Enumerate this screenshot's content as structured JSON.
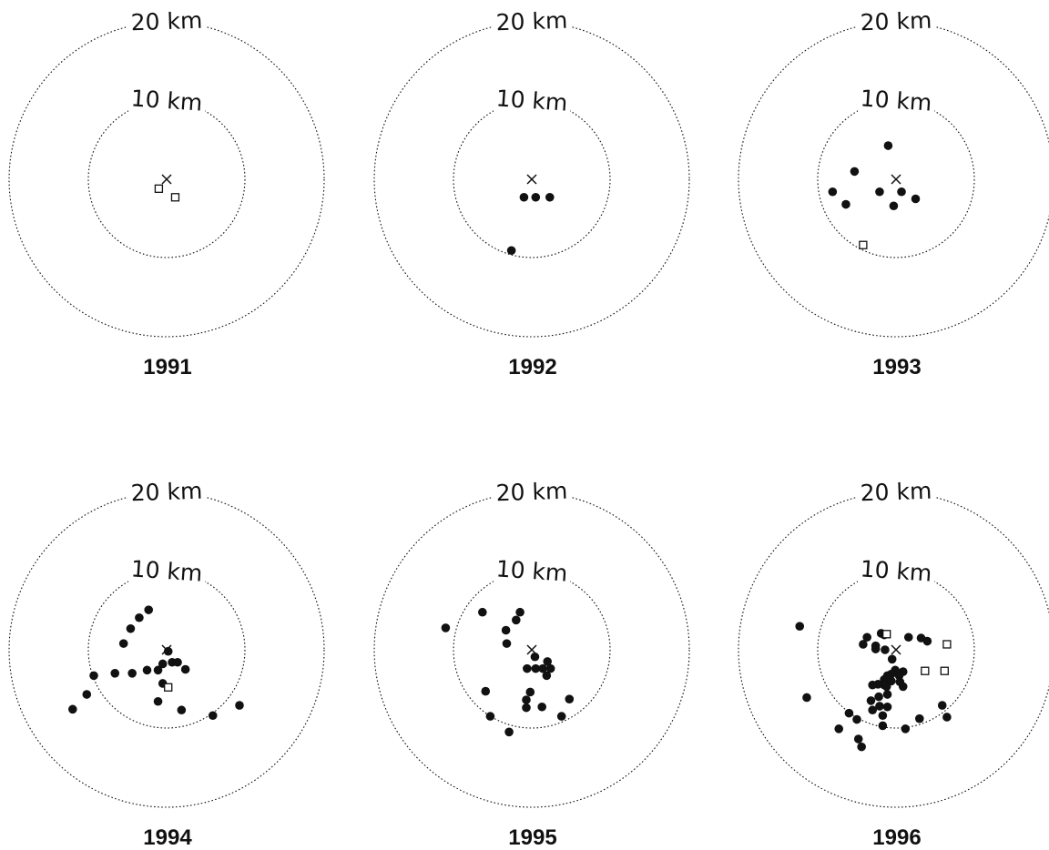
{
  "ring_labels": {
    "inner": "10 km",
    "outer": "20 km"
  },
  "panels": [
    {
      "year": "1991",
      "dots": [],
      "squares": [
        [
          -1,
          1.2
        ],
        [
          1.1,
          2.3
        ]
      ]
    },
    {
      "year": "1992",
      "dots": [
        [
          -1,
          2.3
        ],
        [
          0.5,
          2.3
        ],
        [
          2.3,
          2.3
        ],
        [
          -2.6,
          9.1
        ]
      ],
      "squares": []
    },
    {
      "year": "1993",
      "dots": [
        [
          -1,
          -4.3
        ],
        [
          -5.3,
          -1
        ],
        [
          -8.1,
          1.6
        ],
        [
          -2.1,
          1.6
        ],
        [
          0.7,
          1.6
        ],
        [
          2.5,
          2.5
        ],
        [
          -6.4,
          3.2
        ],
        [
          -0.3,
          3.4
        ]
      ],
      "squares": [
        [
          -4.2,
          8.4
        ]
      ]
    },
    {
      "year": "1994",
      "dots": [
        [
          -2.3,
          -5.1
        ],
        [
          -3.5,
          -4.1
        ],
        [
          -4.6,
          -2.7
        ],
        [
          -5.5,
          -0.8
        ],
        [
          0.2,
          0.2
        ],
        [
          -0.5,
          1.8
        ],
        [
          0.7,
          1.6
        ],
        [
          1.4,
          1.6
        ],
        [
          2.4,
          2.5
        ],
        [
          -6.6,
          3
        ],
        [
          -4.4,
          3
        ],
        [
          -2.5,
          2.6
        ],
        [
          -1.1,
          2.6
        ],
        [
          -0.5,
          4.3
        ],
        [
          -1.1,
          6.6
        ],
        [
          1.9,
          7.7
        ],
        [
          -9.3,
          3.3
        ],
        [
          -10.2,
          5.7
        ],
        [
          -12,
          7.6
        ],
        [
          5.9,
          8.4
        ],
        [
          9.3,
          7.1
        ]
      ],
      "squares": [
        [
          0.2,
          4.8
        ]
      ]
    },
    {
      "year": "1995",
      "dots": [
        [
          -6.3,
          -4.8
        ],
        [
          -1.5,
          -4.8
        ],
        [
          -2,
          -3.8
        ],
        [
          -3.3,
          -2.5
        ],
        [
          -3.2,
          -0.8
        ],
        [
          0.4,
          0.9
        ],
        [
          2,
          1.5
        ],
        [
          -0.6,
          2.4
        ],
        [
          0.5,
          2.4
        ],
        [
          1.4,
          2.4
        ],
        [
          2.4,
          2.4
        ],
        [
          1.9,
          3.3
        ],
        [
          -0.2,
          5.4
        ],
        [
          -0.7,
          6.4
        ],
        [
          -0.7,
          7.4
        ],
        [
          1.3,
          7.3
        ],
        [
          -5.9,
          5.3
        ],
        [
          -5.3,
          8.5
        ],
        [
          -2.9,
          10.5
        ],
        [
          3.8,
          8.5
        ],
        [
          4.8,
          6.3
        ],
        [
          -11,
          -2.8
        ]
      ],
      "squares": []
    },
    {
      "year": "1996",
      "dots": [
        [
          -1.5,
          -1.9
        ],
        [
          -1.4,
          0
        ],
        [
          -2.6,
          -0.5
        ],
        [
          -4.2,
          -0.7
        ],
        [
          -2.6,
          -0.1
        ],
        [
          1.6,
          -1.6
        ],
        [
          -0.5,
          1.2
        ],
        [
          0.9,
          2.8
        ],
        [
          -0.1,
          2.6
        ],
        [
          -0.6,
          3.1
        ],
        [
          -1.1,
          3.3
        ],
        [
          -1.5,
          3.8
        ],
        [
          -0.6,
          4
        ],
        [
          0.4,
          3.3
        ],
        [
          0.5,
          4.1
        ],
        [
          -1.5,
          4.5
        ],
        [
          -2.3,
          4.4
        ],
        [
          -3,
          4.5
        ],
        [
          -1.2,
          4.7
        ],
        [
          0.9,
          4.7
        ],
        [
          -1.1,
          5.7
        ],
        [
          -2.2,
          6
        ],
        [
          -3.2,
          6.5
        ],
        [
          -2.1,
          7.2
        ],
        [
          -1.1,
          7.3
        ],
        [
          -3,
          7.7
        ],
        [
          -1.7,
          8.4
        ],
        [
          -1.7,
          9.7
        ],
        [
          1.2,
          10.1
        ],
        [
          3,
          8.8
        ],
        [
          -5,
          8.9
        ],
        [
          -6,
          8.1
        ],
        [
          -7.3,
          10.1
        ],
        [
          -4.8,
          11.4
        ],
        [
          -4.4,
          12.4
        ],
        [
          -11.4,
          6.1
        ],
        [
          -12.3,
          -3
        ],
        [
          -1.9,
          -2.1
        ],
        [
          -3.7,
          -1.6
        ],
        [
          3.2,
          -1.5
        ],
        [
          4,
          -1.1
        ],
        [
          5.9,
          7.1
        ],
        [
          6.5,
          8.6
        ]
      ],
      "squares": [
        [
          -1.2,
          -2
        ],
        [
          3.7,
          2.7
        ],
        [
          6.5,
          -0.7
        ],
        [
          6.2,
          2.7
        ]
      ]
    }
  ]
}
